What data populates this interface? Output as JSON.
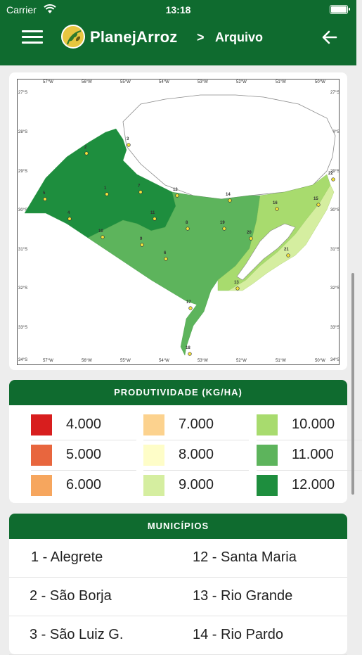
{
  "status": {
    "carrier": "Carrier",
    "time": "13:18"
  },
  "header": {
    "app_name": "PlanejArroz",
    "separator": ">",
    "section": "Arquivo"
  },
  "map": {
    "lon_ticks": [
      "57°W",
      "56°W",
      "55°W",
      "54°W",
      "53°W",
      "52°W",
      "51°W",
      "50°W"
    ],
    "lat_ticks": [
      "27°S",
      "28°S",
      "29°S",
      "30°S",
      "31°S",
      "32°S",
      "33°S",
      "34°S"
    ],
    "points": [
      "1",
      "2",
      "3",
      "4",
      "5",
      "6",
      "7",
      "8",
      "9",
      "10",
      "11",
      "12",
      "13",
      "14",
      "15",
      "16",
      "17",
      "18",
      "19",
      "20",
      "21",
      "22"
    ]
  },
  "legend": {
    "title": "PRODUTIVIDADE (KG/HA)",
    "items": [
      {
        "label": "4.000",
        "color": "#d81e1e"
      },
      {
        "label": "5.000",
        "color": "#e8663e"
      },
      {
        "label": "6.000",
        "color": "#f6a65e"
      },
      {
        "label": "7.000",
        "color": "#fcd28e"
      },
      {
        "label": "8.000",
        "color": "#fefdc8"
      },
      {
        "label": "9.000",
        "color": "#d5eea0"
      },
      {
        "label": "10.000",
        "color": "#a8db6e"
      },
      {
        "label": "11.000",
        "color": "#5db45c"
      },
      {
        "label": "12.000",
        "color": "#1e8e3e"
      }
    ]
  },
  "municipios": {
    "title": "MUNICÍPIOS",
    "rows": [
      [
        "1 - Alegrete",
        "12 - Santa Maria"
      ],
      [
        "2 - São Borja",
        "13 - Rio Grande"
      ],
      [
        "3 - São Luiz G.",
        "14 - Rio Pardo"
      ]
    ]
  }
}
